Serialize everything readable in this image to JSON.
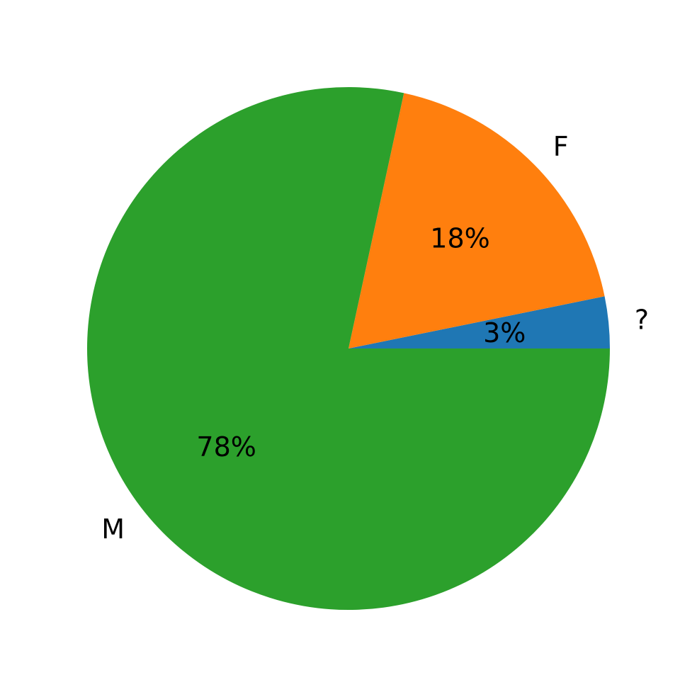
{
  "chart_data": {
    "type": "pie",
    "categories": [
      "?",
      "F",
      "M"
    ],
    "values": [
      3.2,
      18.4,
      78.4
    ],
    "data_labels": [
      "3%",
      "18%",
      "78%"
    ],
    "colors": [
      "#1f77b4",
      "#ff7f0e",
      "#2ca02c"
    ],
    "start_angle_deg": 0,
    "direction": "counterclockwise",
    "legend": "none"
  }
}
